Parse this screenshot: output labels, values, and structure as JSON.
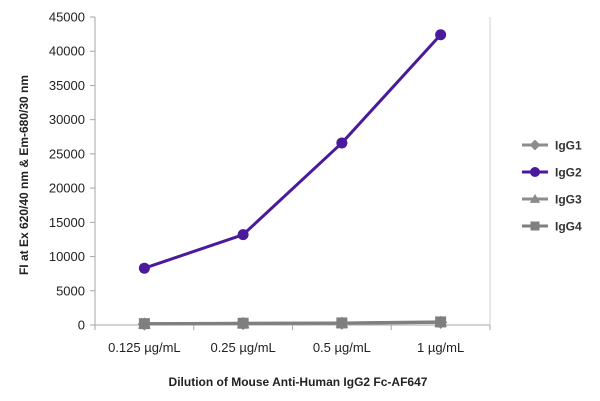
{
  "chart_data": {
    "type": "line",
    "title": "",
    "xlabel": "Dilution of Mouse Anti-Human IgG2 Fc-AF647",
    "ylabel": "FI at Ex 620/40 nm & Em-680/30 nm",
    "categories": [
      "0.125 µg/mL",
      "0.25 µg/mL",
      "0.5 µg/mL",
      "1 µg/mL"
    ],
    "ylim": [
      0,
      45000
    ],
    "yticks": [
      "0",
      "5000",
      "10000",
      "15000",
      "20000",
      "25000",
      "30000",
      "35000",
      "40000",
      "45000"
    ],
    "grid": false,
    "legend_position": "right",
    "series": [
      {
        "name": "IgG1",
        "values": [
          150,
          220,
          260,
          380
        ],
        "color": "#8c8c8c",
        "marker": "diamond"
      },
      {
        "name": "IgG2",
        "values": [
          8300,
          13200,
          26600,
          42400
        ],
        "color": "#4b1a9c",
        "marker": "circle"
      },
      {
        "name": "IgG3",
        "values": [
          160,
          230,
          270,
          400
        ],
        "color": "#8c8c8c",
        "marker": "triangle"
      },
      {
        "name": "IgG4",
        "values": [
          200,
          260,
          300,
          450
        ],
        "color": "#7f7f7f",
        "marker": "square"
      }
    ]
  }
}
